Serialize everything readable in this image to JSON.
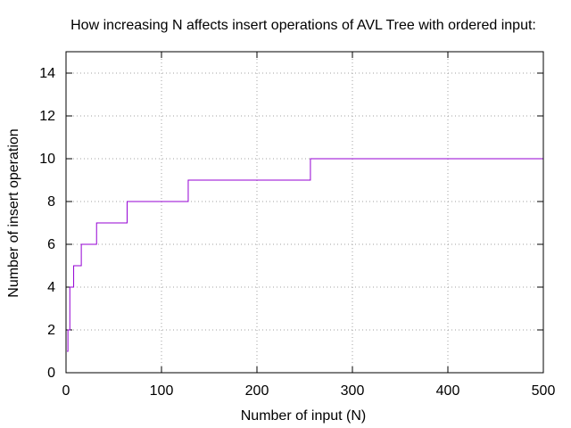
{
  "chart_data": {
    "type": "line",
    "title": "How increasing N affects insert operations of AVL Tree with ordered input:",
    "xlabel": "Number of input (N)",
    "ylabel": "Number of insert operation",
    "xlim": [
      0,
      500
    ],
    "ylim": [
      0,
      15
    ],
    "xticks": [
      0,
      100,
      200,
      300,
      400,
      500
    ],
    "yticks": [
      0,
      2,
      4,
      6,
      8,
      10,
      12,
      14
    ],
    "grid": true,
    "line_color": "#9400d3",
    "series": [
      {
        "step": "post",
        "x": [
          1,
          2,
          4,
          8,
          16,
          32,
          64,
          128,
          256,
          500
        ],
        "y": [
          1,
          2,
          4,
          5,
          6,
          7,
          8,
          9,
          10,
          10
        ]
      }
    ]
  }
}
